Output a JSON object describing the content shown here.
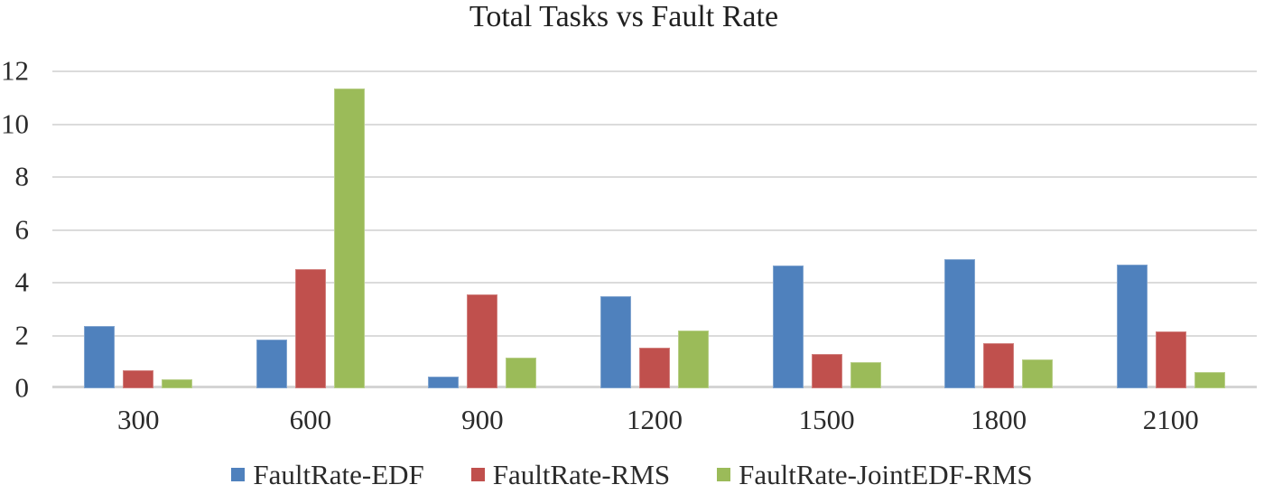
{
  "chart_data": {
    "type": "bar",
    "title": "Total Tasks vs Fault Rate",
    "categories": [
      "300",
      "600",
      "900",
      "1200",
      "1500",
      "1800",
      "2100"
    ],
    "series": [
      {
        "name": "FaultRate-EDF",
        "color": "#4F81BD",
        "values": [
          2.35,
          1.85,
          0.45,
          3.5,
          4.65,
          4.9,
          4.7
        ]
      },
      {
        "name": "FaultRate-RMS",
        "color": "#C0504D",
        "values": [
          0.7,
          4.5,
          3.55,
          1.55,
          1.3,
          1.7,
          2.15
        ]
      },
      {
        "name": "FaultRate-JointEDF-RMS",
        "color": "#9BBB59",
        "values": [
          0.35,
          11.35,
          1.15,
          2.2,
          1.0,
          1.1,
          0.6
        ]
      }
    ],
    "y_ticks": [
      0,
      2,
      4,
      6,
      8,
      10,
      12
    ],
    "ylim": [
      0,
      12
    ],
    "xlabel": "",
    "ylabel": "",
    "grid": true,
    "legend_position": "bottom"
  },
  "colors": {
    "gridline": "#DBDBDB",
    "axis_line": "#D4D4D4",
    "text": "#2B2B2B",
    "background": "#FFFFFF"
  }
}
